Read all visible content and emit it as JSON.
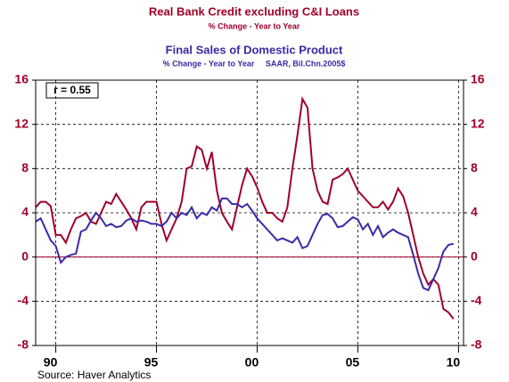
{
  "chart_data": {
    "type": "line",
    "title": "Real Bank Credit excluding C&I Loans",
    "subtitle": "% Change - Year to Year",
    "title2": "Final Sales of Domestic Product",
    "subtitle2": "% Change - Year to Year     SAAR, Bil.Chn.2005$",
    "annotation": "r = 0.55",
    "source": "Source: Haver Analytics",
    "x": [
      1989,
      1989.25,
      1989.5,
      1989.75,
      1990,
      1990.25,
      1990.5,
      1990.75,
      1991,
      1991.25,
      1991.5,
      1991.75,
      1992,
      1992.25,
      1992.5,
      1992.75,
      1993,
      1993.25,
      1993.5,
      1993.75,
      1994,
      1994.25,
      1994.5,
      1994.75,
      1995,
      1995.25,
      1995.5,
      1995.75,
      1996,
      1996.25,
      1996.5,
      1996.75,
      1997,
      1997.25,
      1997.5,
      1997.75,
      1998,
      1998.25,
      1998.5,
      1998.75,
      1999,
      1999.25,
      1999.5,
      1999.75,
      2000,
      2000.25,
      2000.5,
      2000.75,
      2001,
      2001.25,
      2001.5,
      2001.75,
      2002,
      2002.25,
      2002.5,
      2002.75,
      2003,
      2003.25,
      2003.5,
      2003.75,
      2004,
      2004.25,
      2004.5,
      2004.75,
      2005,
      2005.25,
      2005.5,
      2005.75,
      2006,
      2006.25,
      2006.5,
      2006.75,
      2007,
      2007.25,
      2007.5,
      2007.75,
      2008,
      2008.25,
      2008.5,
      2008.75,
      2009,
      2009.25,
      2009.5,
      2009.75
    ],
    "series": [
      {
        "name": "Real Bank Credit excluding C&I Loans",
        "color": "#a0002a",
        "values": [
          4.5,
          5,
          5,
          4.6,
          2,
          2,
          1.3,
          2.5,
          3.5,
          3.7,
          4,
          3.2,
          3,
          4,
          5,
          4.8,
          5.7,
          5,
          4.3,
          3.5,
          2.5,
          4.5,
          5,
          5,
          5,
          3,
          1.5,
          2.5,
          3.5,
          5,
          8,
          8.2,
          10,
          9.7,
          8,
          9.5,
          6,
          4,
          3.2,
          2.5,
          4.5,
          6.5,
          8,
          7.3,
          6.3,
          5,
          4,
          4,
          3.5,
          3.2,
          4.5,
          8,
          11,
          14.3,
          13.5,
          8,
          6,
          5,
          4.8,
          7,
          7.2,
          7.5,
          8,
          7,
          6,
          5.5,
          5,
          4.5,
          4.5,
          5,
          4.3,
          5,
          6.2,
          5.5,
          4,
          2,
          0,
          -1.5,
          -2.5,
          -2,
          -2.5,
          -4.7,
          -5,
          -5.6
        ]
      },
      {
        "name": "Final Sales of Domestic Product",
        "color": "#3a2aa8",
        "values": [
          3.2,
          3.5,
          2.5,
          1.5,
          1,
          -0.5,
          0,
          0.2,
          0.3,
          2.3,
          2.5,
          3.3,
          4,
          3.5,
          2.8,
          3,
          2.7,
          2.8,
          3.3,
          3.5,
          3.2,
          3.3,
          3.2,
          3,
          3,
          2.8,
          3.2,
          4,
          3.5,
          4,
          3.8,
          4.5,
          3.5,
          4,
          3.8,
          4.5,
          4.2,
          5.3,
          5.3,
          4.8,
          4.8,
          4.5,
          4.8,
          4.2,
          3.5,
          3,
          2.5,
          2,
          1.5,
          1.7,
          1.5,
          1.3,
          1.8,
          0.8,
          1,
          2,
          3,
          3.8,
          3.9,
          3.5,
          2.7,
          2.8,
          3.2,
          3.6,
          3.4,
          2.5,
          3,
          2,
          2.8,
          1.8,
          2.2,
          2.5,
          2.2,
          2,
          1.8,
          0.2,
          -1.5,
          -2.8,
          -3,
          -2,
          -1,
          0.5,
          1.1,
          1.2
        ]
      }
    ],
    "xlim": [
      1989,
      2010.25
    ],
    "xticks": [
      {
        "value": 1990,
        "label": "90"
      },
      {
        "value": 1995,
        "label": "95"
      },
      {
        "value": 2000,
        "label": "00"
      },
      {
        "value": 2005,
        "label": "05"
      },
      {
        "value": 2010,
        "label": "10"
      }
    ],
    "ylim": [
      -8,
      16
    ],
    "yticks": [
      -8,
      -4,
      0,
      4,
      8,
      12,
      16
    ],
    "y2lim": [
      -8,
      16
    ],
    "y2ticks": [
      -8,
      -4,
      0,
      4,
      8,
      12,
      16
    ],
    "grid": true
  }
}
